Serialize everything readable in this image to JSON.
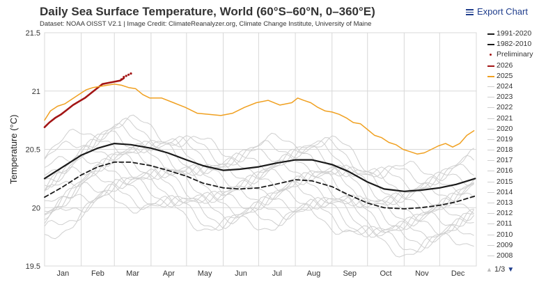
{
  "header": {
    "title": "Daily Sea Surface Temperature, World (60°S–60°N, 0–360°E)",
    "subtitle": "Dataset: NOAA OISST V2.1 | Image Credit: ClimateReanalyzer.org, Climate Change Institute, University of Maine",
    "export_label": "Export Chart"
  },
  "pager": {
    "label": "1/3"
  },
  "colors": {
    "mean1991": "#1a1a1a",
    "mean1982": "#1a1a1a",
    "preliminary": "#a31515",
    "y2026": "#a31515",
    "y2025": "#f0a020",
    "past_years": "#cfcfcf"
  },
  "legend": [
    {
      "label": "1991-2020",
      "style": "solid-black"
    },
    {
      "label": "1982-2010",
      "style": "dashed-black"
    },
    {
      "label": "Preliminary",
      "style": "dot-red"
    },
    {
      "label": "2026",
      "style": "solid-darkred"
    },
    {
      "label": "2025",
      "style": "solid-orange"
    },
    {
      "label": "2024",
      "style": "gray"
    },
    {
      "label": "2023",
      "style": "gray"
    },
    {
      "label": "2022",
      "style": "gray"
    },
    {
      "label": "2021",
      "style": "gray"
    },
    {
      "label": "2020",
      "style": "gray"
    },
    {
      "label": "2019",
      "style": "gray"
    },
    {
      "label": "2018",
      "style": "gray"
    },
    {
      "label": "2017",
      "style": "gray"
    },
    {
      "label": "2016",
      "style": "gray"
    },
    {
      "label": "2015",
      "style": "gray"
    },
    {
      "label": "2014",
      "style": "gray"
    },
    {
      "label": "2013",
      "style": "gray"
    },
    {
      "label": "2012",
      "style": "gray"
    },
    {
      "label": "2011",
      "style": "gray"
    },
    {
      "label": "2010",
      "style": "gray"
    },
    {
      "label": "2009",
      "style": "gray"
    },
    {
      "label": "2008",
      "style": "gray"
    }
  ],
  "chart_data": {
    "type": "line",
    "title": "Daily Sea Surface Temperature, World (60°S–60°N, 0–360°E)",
    "ylabel": "Temperature (°C)",
    "xlabel": "",
    "ylim": [
      19.5,
      21.5
    ],
    "yticks": [
      19.5,
      20,
      20.5,
      21,
      21.5
    ],
    "xlim": [
      1,
      366
    ],
    "months": [
      "Jan",
      "Feb",
      "Mar",
      "Apr",
      "May",
      "Jun",
      "Jul",
      "Aug",
      "Sep",
      "Oct",
      "Nov",
      "Dec"
    ],
    "grid": true,
    "legend_position": "right",
    "series": [
      {
        "name": "1991-2020",
        "style": "solid",
        "x": [
          1,
          15,
          32,
          46,
          60,
          74,
          91,
          105,
          121,
          135,
          152,
          166,
          182,
          196,
          213,
          227,
          244,
          258,
          274,
          288,
          305,
          319,
          335,
          349,
          365
        ],
        "y": [
          20.25,
          20.34,
          20.45,
          20.51,
          20.55,
          20.54,
          20.51,
          20.47,
          20.41,
          20.36,
          20.32,
          20.33,
          20.35,
          20.38,
          20.41,
          20.41,
          20.37,
          20.31,
          20.22,
          20.16,
          20.14,
          20.15,
          20.17,
          20.2,
          20.25
        ]
      },
      {
        "name": "1982-2010",
        "style": "dashed",
        "x": [
          1,
          15,
          32,
          46,
          60,
          74,
          91,
          105,
          121,
          135,
          152,
          166,
          182,
          196,
          213,
          227,
          244,
          258,
          274,
          288,
          305,
          319,
          335,
          349,
          365
        ],
        "y": [
          20.09,
          20.17,
          20.28,
          20.35,
          20.39,
          20.39,
          20.36,
          20.32,
          20.27,
          20.21,
          20.17,
          20.16,
          20.17,
          20.2,
          20.24,
          20.23,
          20.18,
          20.11,
          20.04,
          20.0,
          19.99,
          20.0,
          20.02,
          20.05,
          20.1
        ]
      },
      {
        "name": "2026",
        "style": "solid",
        "x": [
          1,
          5,
          10,
          15,
          20,
          25,
          30,
          35,
          40,
          45,
          50,
          55,
          60,
          65,
          68
        ],
        "y": [
          20.69,
          20.73,
          20.77,
          20.8,
          20.84,
          20.88,
          20.91,
          20.94,
          20.98,
          21.02,
          21.06,
          21.07,
          21.08,
          21.09,
          21.11
        ]
      },
      {
        "name": "Preliminary",
        "style": "dotted",
        "x": [
          66,
          68,
          70,
          72,
          74
        ],
        "y": [
          21.1,
          21.12,
          21.13,
          21.14,
          21.15
        ]
      },
      {
        "name": "2025",
        "style": "solid",
        "x": [
          1,
          6,
          12,
          18,
          24,
          30,
          36,
          42,
          48,
          54,
          60,
          66,
          72,
          78,
          84,
          90,
          100,
          110,
          120,
          130,
          140,
          150,
          160,
          170,
          180,
          190,
          200,
          210,
          215,
          220,
          226,
          232,
          238,
          244,
          250,
          256,
          262,
          268,
          274,
          280,
          286,
          292,
          298,
          304,
          310,
          316,
          322,
          328,
          334,
          340,
          346,
          352,
          358,
          364
        ],
        "y": [
          20.75,
          20.83,
          20.87,
          20.89,
          20.93,
          20.97,
          21.01,
          21.03,
          21.04,
          21.05,
          21.06,
          21.05,
          21.03,
          21.02,
          20.97,
          20.94,
          20.94,
          20.9,
          20.86,
          20.81,
          20.8,
          20.79,
          20.81,
          20.86,
          20.9,
          20.92,
          20.88,
          20.9,
          20.94,
          20.92,
          20.9,
          20.86,
          20.83,
          20.82,
          20.8,
          20.77,
          20.73,
          20.72,
          20.67,
          20.62,
          20.6,
          20.56,
          20.54,
          20.5,
          20.48,
          20.46,
          20.47,
          20.5,
          20.53,
          20.55,
          20.52,
          20.55,
          20.62,
          20.66
        ]
      }
    ],
    "background_years": [
      "2024",
      "2023",
      "2022",
      "2021",
      "2020",
      "2019",
      "2018",
      "2017",
      "2016",
      "2015",
      "2014",
      "2013",
      "2012",
      "2011",
      "2010",
      "2009",
      "2008"
    ]
  }
}
